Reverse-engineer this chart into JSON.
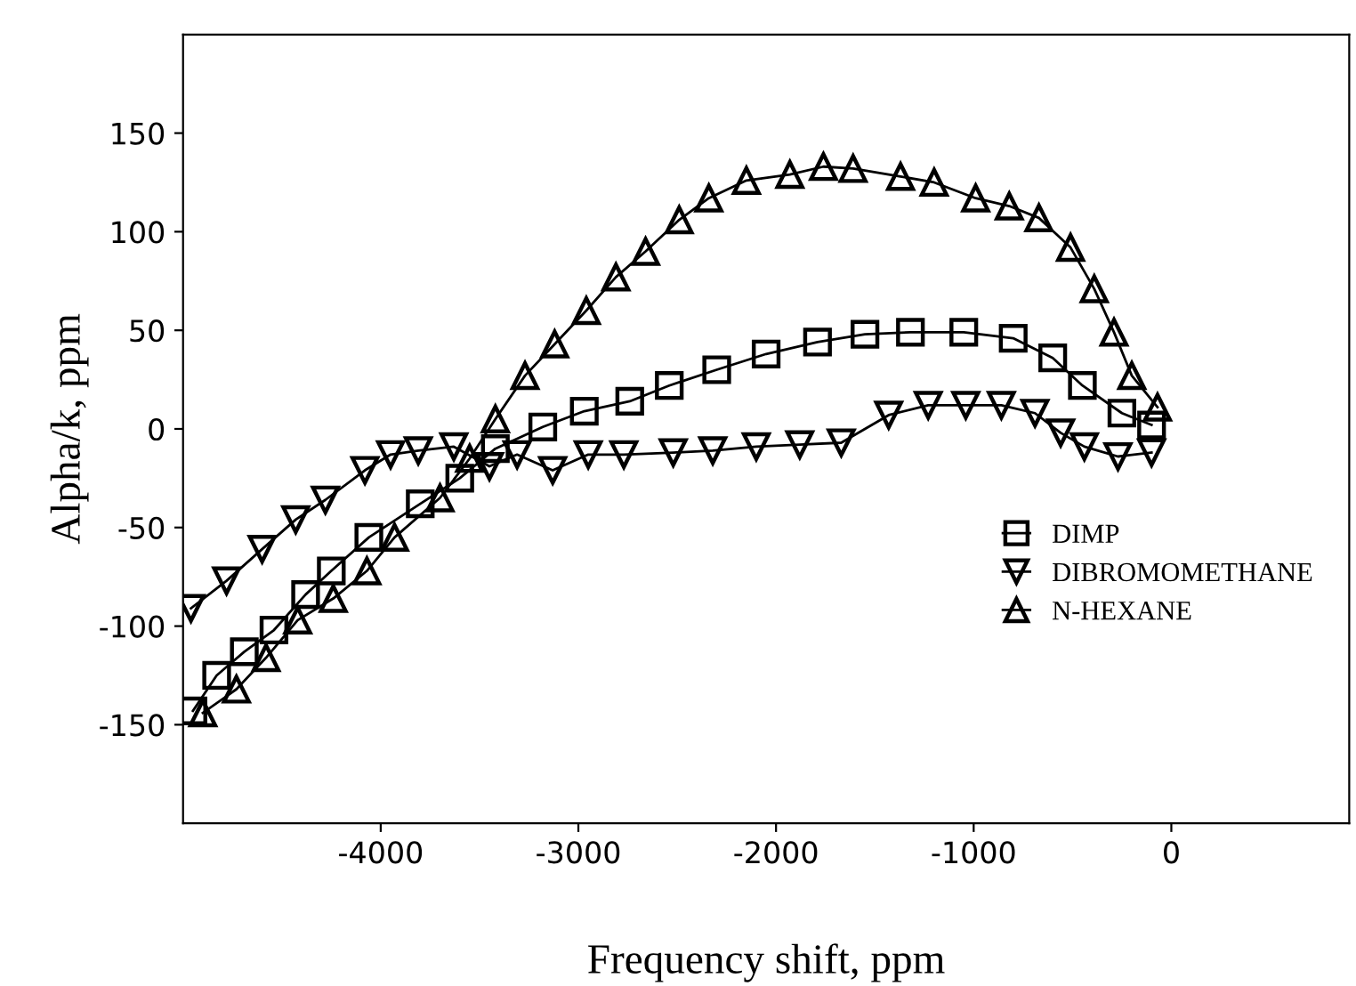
{
  "chart_data": {
    "type": "line",
    "xlabel": "Frequency shift, ppm",
    "ylabel": "Alpha/k, ppm",
    "xlim": [
      -5000,
      900
    ],
    "ylim": [
      -200,
      200
    ],
    "xticks": [
      -4000,
      -3000,
      -2000,
      -1000,
      0
    ],
    "yticks": [
      -150,
      -100,
      -50,
      0,
      50,
      100,
      150
    ],
    "grid": false,
    "legend": "bottom right",
    "line_style": "solid",
    "series": [
      {
        "name": "DIMP",
        "color": "#000000",
        "marker": "square",
        "x": [
          -4950,
          -4830,
          -4690,
          -4540,
          -4380,
          -4250,
          -4060,
          -3800,
          -3600,
          -3420,
          -3180,
          -2970,
          -2740,
          -2540,
          -2300,
          -2050,
          -1790,
          -1550,
          -1320,
          -1050,
          -800,
          -600,
          -450,
          -250,
          -100
        ],
        "values": [
          -143,
          -125,
          -113,
          -102,
          -84,
          -72,
          -55,
          -38,
          -25,
          -10,
          1,
          9,
          14,
          22,
          30,
          38,
          44,
          48,
          49,
          49,
          46,
          36,
          22,
          8,
          2
        ]
      },
      {
        "name": "DIBROMOMETHANE",
        "color": "#000000",
        "marker": "triangle_down",
        "x": [
          -4960,
          -4780,
          -4600,
          -4430,
          -4280,
          -4080,
          -3950,
          -3810,
          -3630,
          -3450,
          -3310,
          -3130,
          -2950,
          -2770,
          -2520,
          -2320,
          -2100,
          -1880,
          -1670,
          -1430,
          -1230,
          -1040,
          -860,
          -690,
          -560,
          -440,
          -270,
          -100
        ],
        "values": [
          -91,
          -77,
          -61,
          -46,
          -36,
          -21,
          -13,
          -11,
          -9,
          -19,
          -13,
          -21,
          -13,
          -13,
          -12,
          -11,
          -9,
          -8,
          -7,
          7,
          12,
          12,
          12,
          8,
          -2,
          -9,
          -14,
          -12
        ]
      },
      {
        "name": "N-HEXANE",
        "color": "#000000",
        "marker": "triangle_up",
        "x": [
          -4900,
          -4730,
          -4580,
          -4420,
          -4240,
          -4070,
          -3930,
          -3700,
          -3550,
          -3420,
          -3270,
          -3120,
          -2960,
          -2810,
          -2660,
          -2490,
          -2340,
          -2150,
          -1930,
          -1760,
          -1610,
          -1370,
          -1200,
          -990,
          -820,
          -670,
          -510,
          -390,
          -290,
          -200,
          -70
        ],
        "values": [
          -144,
          -132,
          -116,
          -97,
          -86,
          -72,
          -55,
          -35,
          -15,
          5,
          27,
          43,
          60,
          77,
          90,
          106,
          117,
          126,
          129,
          133,
          132,
          128,
          125,
          117,
          113,
          107,
          92,
          71,
          49,
          27,
          11
        ]
      }
    ]
  }
}
